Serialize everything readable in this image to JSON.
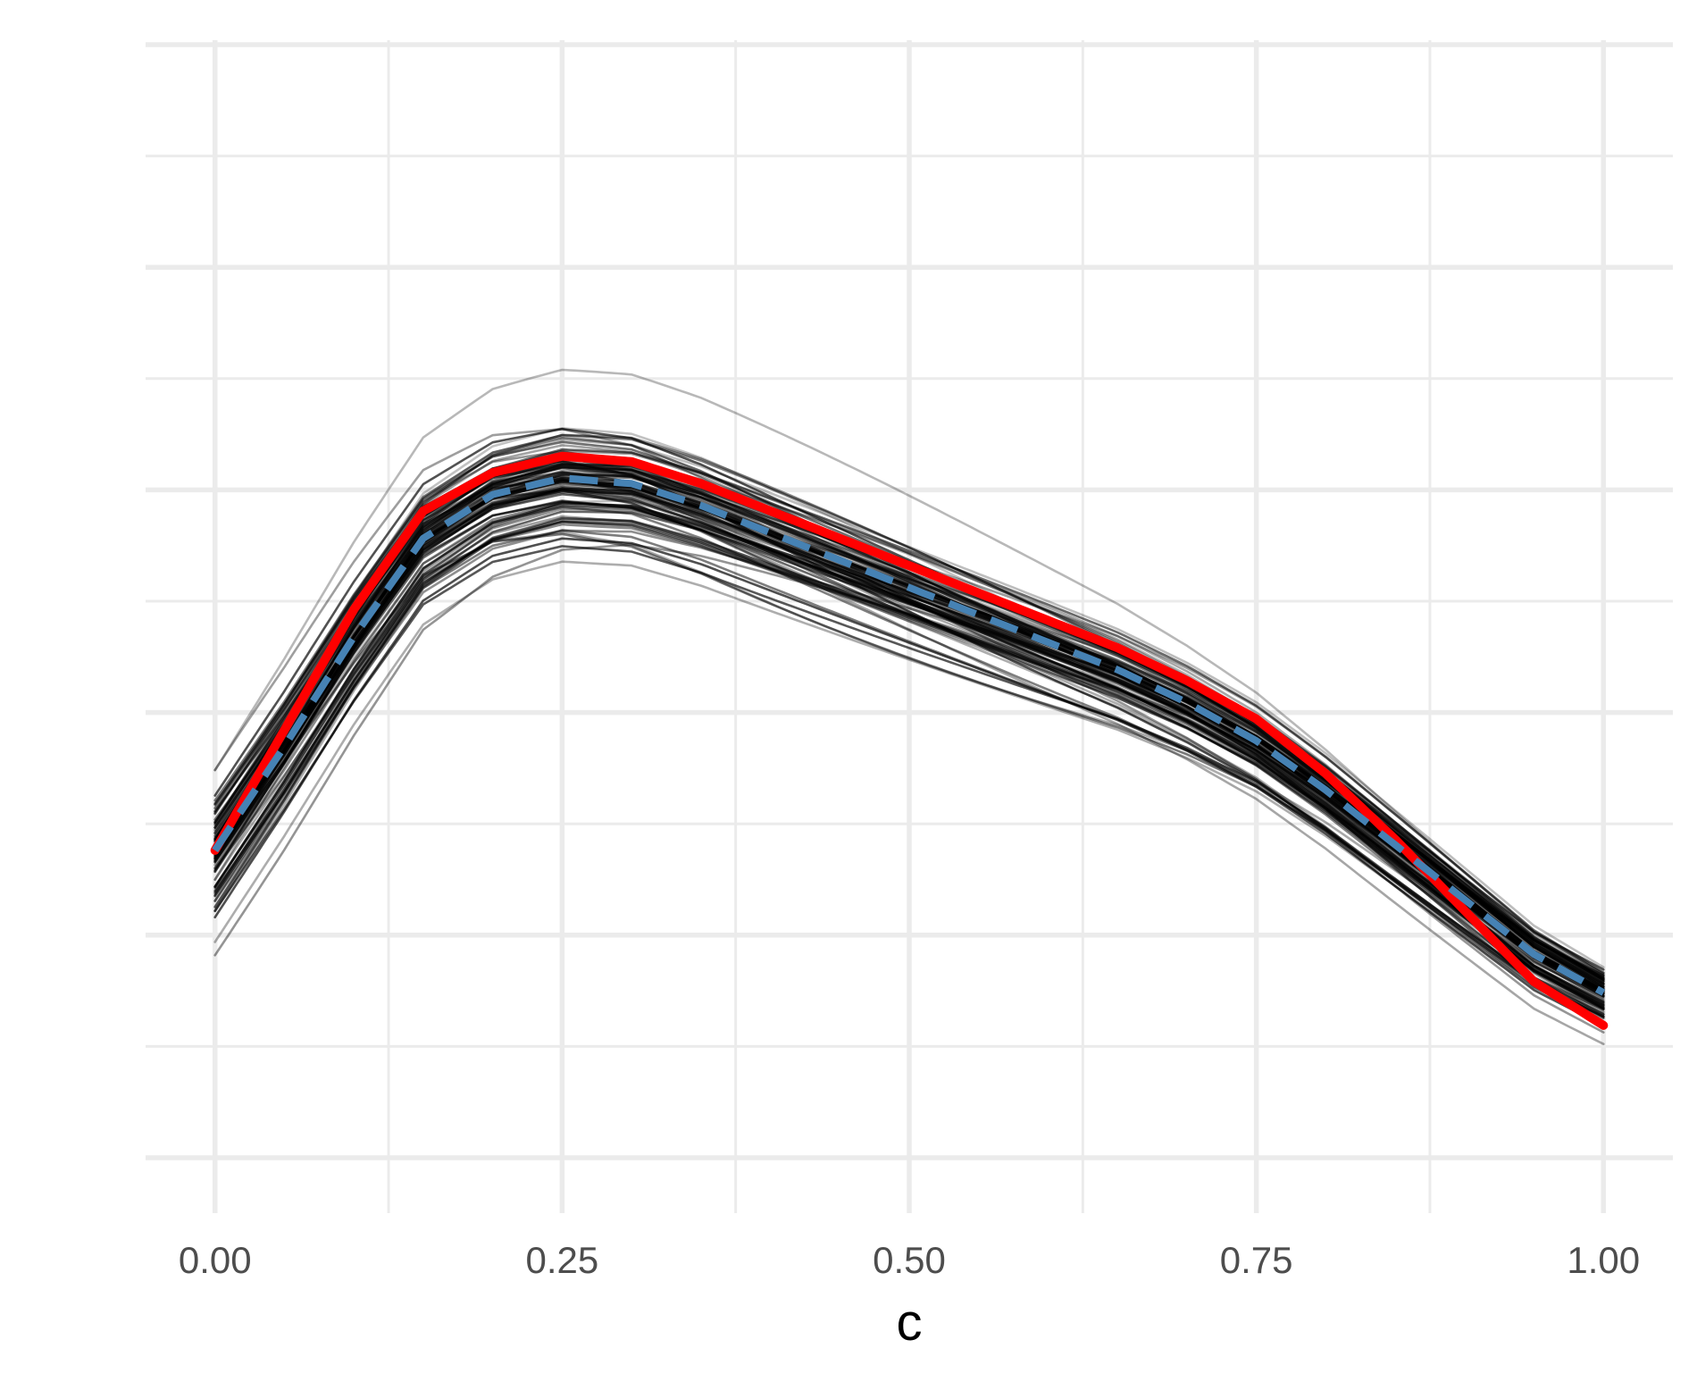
{
  "chart_data": {
    "type": "line",
    "title": "",
    "xlabel": "c",
    "ylabel": "",
    "xlim": [
      -0.05,
      1.05
    ],
    "ylim": [
      -0.3,
      9.9
    ],
    "x_ticks": [
      0.0,
      0.25,
      0.5,
      0.75,
      1.0
    ],
    "x_tick_labels": [
      "0.00",
      "0.25",
      "0.50",
      "0.75",
      "1.00"
    ],
    "y_tick_labels_shown": false,
    "grid": true,
    "legend": "none",
    "x": [
      0.0,
      0.05,
      0.1,
      0.15,
      0.2,
      0.25,
      0.3,
      0.35,
      0.4,
      0.45,
      0.5,
      0.55,
      0.6,
      0.65,
      0.7,
      0.75,
      0.8,
      0.85,
      0.9,
      0.95,
      1.0
    ],
    "series": [
      {
        "color": "#ff0000",
        "style": "solid",
        "values": [
          2.5,
          3.6,
          4.7,
          5.6,
          5.95,
          6.1,
          6.05,
          5.85,
          5.6,
          5.35,
          5.1,
          4.85,
          4.6,
          4.35,
          4.05,
          3.7,
          3.2,
          2.6,
          1.95,
          1.3,
          0.9
        ]
      },
      {
        "color": "#4682b4",
        "style": "dashed",
        "values": [
          2.5,
          3.45,
          4.45,
          5.35,
          5.75,
          5.9,
          5.85,
          5.65,
          5.4,
          5.15,
          4.9,
          4.65,
          4.4,
          4.15,
          3.85,
          3.5,
          3.05,
          2.55,
          2.05,
          1.55,
          1.2
        ]
      }
    ],
    "sample_curves": {
      "count": 100,
      "color": "#000000",
      "opacity_range": [
        0.2,
        0.7
      ]
    }
  }
}
